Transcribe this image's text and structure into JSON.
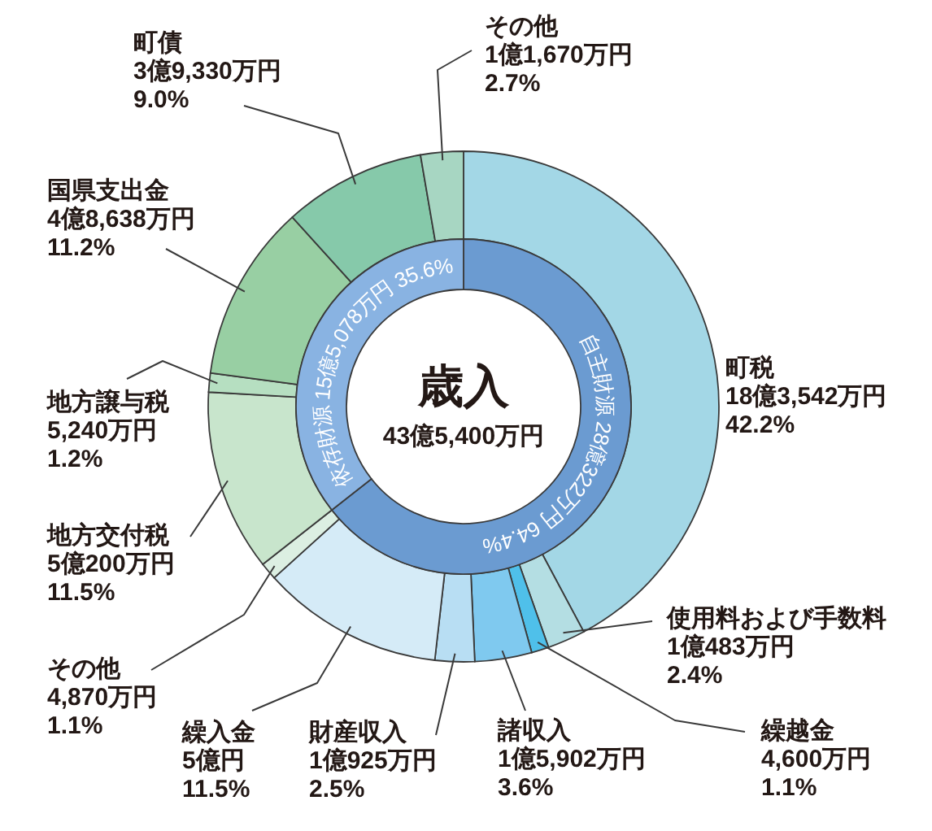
{
  "chart_data": [
    {
      "type": "donut",
      "categories": [
        "町税",
        "使用料および手数料",
        "繰越金",
        "諸収入",
        "財産収入",
        "繰入金",
        "その他",
        "地方交付税",
        "地方譲与税",
        "国県支出金",
        "町債",
        "その他"
      ],
      "values": [
        42.2,
        2.4,
        1.1,
        3.6,
        2.5,
        11.5,
        1.1,
        11.5,
        1.2,
        11.2,
        9.0,
        2.7
      ],
      "colors": [
        "#a3d7e6",
        "#b4dee3",
        "#4fc0ea",
        "#7fc9ef",
        "#b8def3",
        "#d5ebf7",
        "#dcefe2",
        "#c8e5cc",
        "#b6dfc1",
        "#98cfa3",
        "#86c9aa",
        "#a7d6c2"
      ],
      "value_labels": [
        "18億3,542万円 42.2%",
        "1億483万円 2.4%",
        "4,600万円 1.1%",
        "1億5,902万円 3.6%",
        "1億925万円 2.5%",
        "5億円 11.5%",
        "4,870万円 1.1%",
        "5億200万円 11.5%",
        "5,240万円 1.2%",
        "4億8,638万円 11.2%",
        "3億9,330万円 9.0%",
        "1億1,670万円 2.7%"
      ]
    },
    {
      "type": "donut",
      "title": "歳入",
      "subtitle": "43億5,400万円",
      "categories": [
        "自主財源",
        "依存財源"
      ],
      "values": [
        64.4,
        35.6
      ],
      "colors": [
        "#6b9bd1",
        "#89b3e2"
      ],
      "value_labels": [
        "28億322万円 64.4%",
        "15億5,078万円 35.6%"
      ]
    }
  ]
}
